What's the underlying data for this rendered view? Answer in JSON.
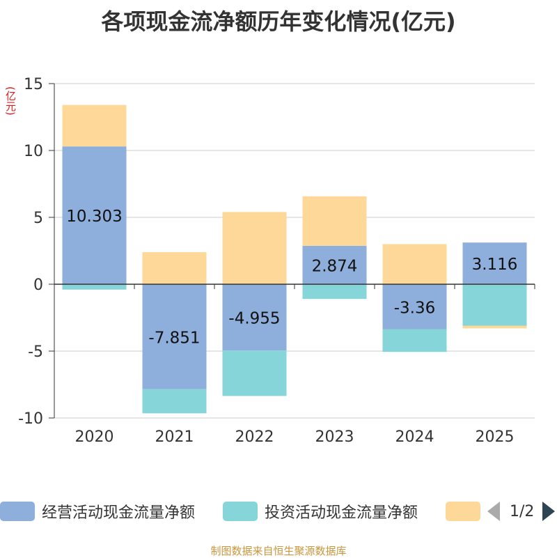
{
  "chart_data": {
    "type": "bar",
    "stacked": true,
    "title": "各项现金流净额历年变化情况(亿元)",
    "ylabel": "(亿元)",
    "xlabel": "",
    "ylim": [
      -10,
      15
    ],
    "yticks": [
      15,
      10,
      5,
      0,
      -5,
      -10
    ],
    "categories": [
      "2020",
      "2021",
      "2022",
      "2023",
      "2024",
      "2025"
    ],
    "series": [
      {
        "name": "经营活动现金流量净额",
        "color": "#8eaedb",
        "values": [
          10.303,
          -7.851,
          -4.955,
          2.874,
          -3.36,
          3.116
        ],
        "labels": [
          "10.303",
          "-7.851",
          "-4.955",
          "2.874",
          "-3.36",
          "3.116"
        ]
      },
      {
        "name": "投资活动现金流量净额",
        "color": "#86d5d9",
        "values": [
          -0.4,
          -1.8,
          -3.4,
          -1.1,
          -1.7,
          -3.1
        ]
      },
      {
        "name": "",
        "color": "#fed898",
        "values": [
          3.1,
          2.4,
          5.4,
          3.7,
          3.0,
          -0.2
        ]
      }
    ]
  },
  "legend": {
    "items": [
      {
        "label": "经营活动现金流量净额",
        "color": "#8eaedb"
      },
      {
        "label": "投资活动现金流量净额",
        "color": "#86d5d9"
      },
      {
        "label": "",
        "color": "#fed898"
      }
    ],
    "page": "1/2"
  },
  "source": "制图数据来自恒生聚源数据库"
}
